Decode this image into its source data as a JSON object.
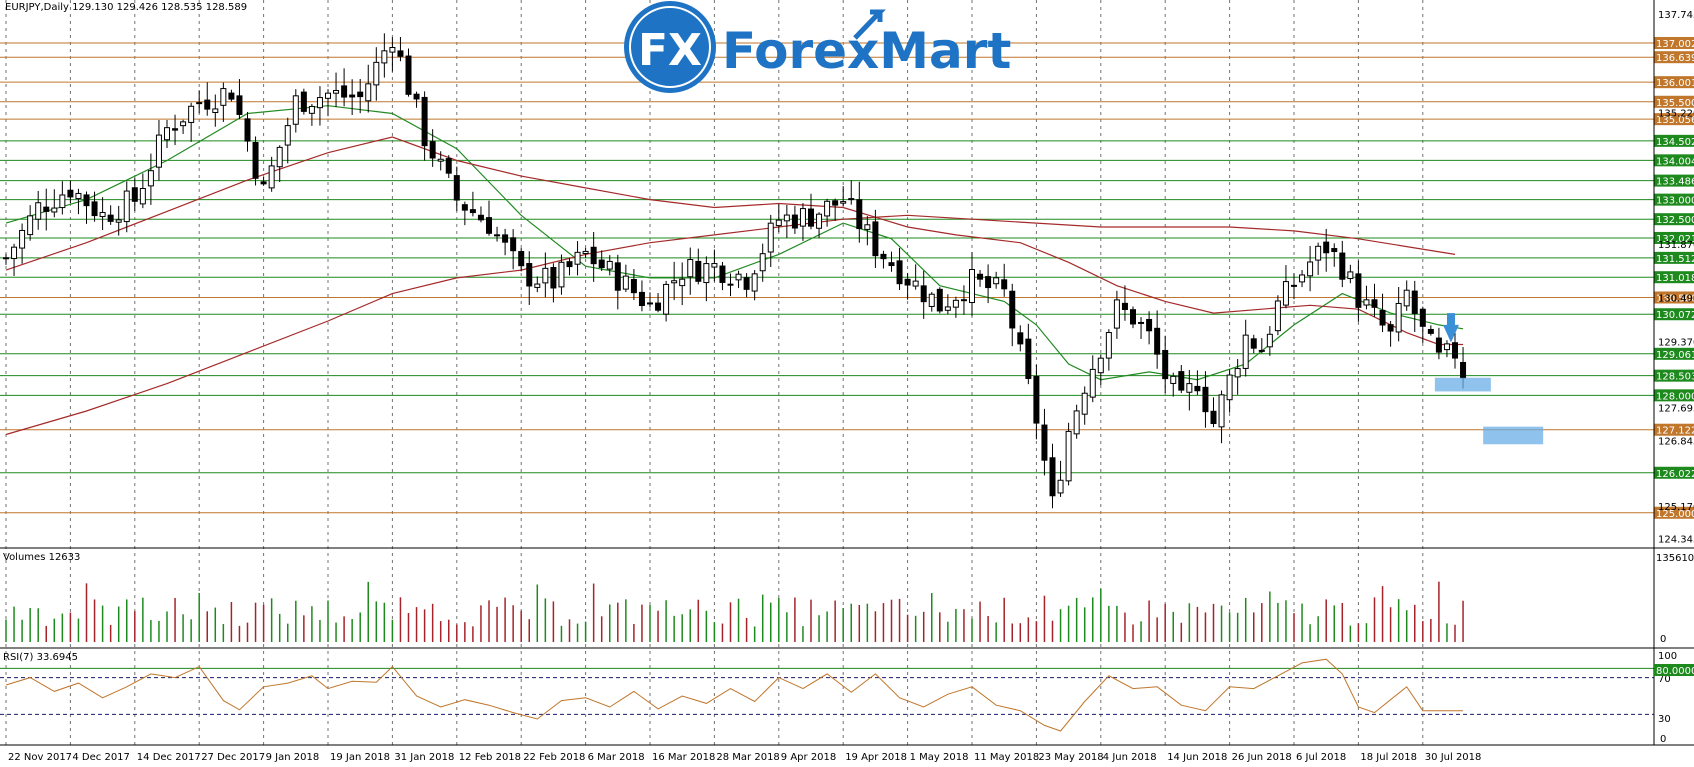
{
  "chart_data": {
    "type": "candlestick",
    "symbol_label": "EURJPY,Daily  129.130 129.426 128.535 128.589",
    "brand": {
      "name": "ForexMart",
      "mark": "FX",
      "color": "#1e73c4"
    },
    "price_axis": {
      "range": [
        124.1,
        138.1
      ],
      "ticks": [
        "137.745",
        "135.220",
        "131.870",
        "130.495",
        "129.370",
        "127.695",
        "126.845",
        "125.170",
        "124.345"
      ]
    },
    "x_axis": {
      "labels": [
        "22 Nov 2017",
        "4 Dec 2017",
        "14 Dec 2017",
        "27 Dec 2017",
        "9 Jan 2018",
        "19 Jan 2018",
        "31 Jan 2018",
        "12 Feb 2018",
        "22 Feb 2018",
        "6 Mar 2018",
        "16 Mar 2018",
        "28 Mar 2018",
        "9 Apr 2018",
        "19 Apr 2018",
        "1 May 2018",
        "11 May 2018",
        "23 May 2018",
        "4 Jun 2018",
        "14 Jun 2018",
        "26 Jun 2018",
        "6 Jul 2018",
        "18 Jul 2018",
        "30 Jul 2018"
      ],
      "label_bar_index": [
        0,
        8,
        16,
        24,
        32,
        40,
        48,
        56,
        64,
        72,
        80,
        88,
        96,
        104,
        112,
        120,
        128,
        136,
        144,
        152,
        160,
        168,
        176
      ]
    },
    "levels": [
      {
        "value": 137.002,
        "label": "137.002",
        "color": "#c0762b"
      },
      {
        "value": 136.639,
        "label": "136.639",
        "color": "#c0762b"
      },
      {
        "value": 136.001,
        "label": "136.001",
        "color": "#c0762b"
      },
      {
        "value": 135.5,
        "label": "135.500",
        "color": "#c0762b"
      },
      {
        "value": 135.056,
        "label": "135.056",
        "color": "#c0762b"
      },
      {
        "value": 134.502,
        "label": "134.502",
        "color": "#1e8a1e"
      },
      {
        "value": 134.004,
        "label": "134.004",
        "color": "#1e8a1e"
      },
      {
        "value": 133.486,
        "label": "133.486",
        "color": "#1e8a1e"
      },
      {
        "value": 133.0,
        "label": "133.000",
        "color": "#1e8a1e"
      },
      {
        "value": 132.5,
        "label": "132.500",
        "color": "#1e8a1e"
      },
      {
        "value": 132.021,
        "label": "132.021",
        "color": "#1e8a1e"
      },
      {
        "value": 131.512,
        "label": "131.512",
        "color": "#1e8a1e"
      },
      {
        "value": 131.018,
        "label": "131.018",
        "color": "#1e8a1e"
      },
      {
        "value": 130.5,
        "label": "130.500",
        "color": "#c0762b"
      },
      {
        "value": 130.072,
        "label": "130.072",
        "color": "#1e8a1e"
      },
      {
        "value": 129.061,
        "label": "129.061",
        "color": "#1e8a1e"
      },
      {
        "value": 128.503,
        "label": "128.503",
        "color": "#1e8a1e"
      },
      {
        "value": 128.0,
        "label": "128.000",
        "color": "#1e8a1e"
      },
      {
        "value": 127.122,
        "label": "127.122",
        "color": "#c0762b"
      },
      {
        "value": 126.022,
        "label": "126.022",
        "color": "#1e8a1e"
      },
      {
        "value": 125.0,
        "label": "125.000",
        "color": "#c0762b"
      }
    ],
    "candles": {
      "close_path": [
        [
          0,
          131.5
        ],
        [
          4,
          132.8
        ],
        [
          8,
          133.3
        ],
        [
          12,
          132.6
        ],
        [
          16,
          133.0
        ],
        [
          20,
          134.8
        ],
        [
          24,
          135.5
        ],
        [
          28,
          135.8
        ],
        [
          32,
          133.2
        ],
        [
          36,
          135.5
        ],
        [
          40,
          135.7
        ],
        [
          44,
          135.6
        ],
        [
          48,
          137.2
        ],
        [
          52,
          134.6
        ],
        [
          56,
          133.0
        ],
        [
          60,
          132.4
        ],
        [
          64,
          131.1
        ],
        [
          68,
          130.9
        ],
        [
          72,
          131.6
        ],
        [
          76,
          131.0
        ],
        [
          80,
          130.3
        ],
        [
          84,
          131.2
        ],
        [
          88,
          131.3
        ],
        [
          92,
          131.0
        ],
        [
          96,
          132.5
        ],
        [
          100,
          132.6
        ],
        [
          104,
          133.0
        ],
        [
          108,
          131.8
        ],
        [
          112,
          131.0
        ],
        [
          116,
          130.3
        ],
        [
          120,
          130.9
        ],
        [
          124,
          130.6
        ],
        [
          126,
          129.0
        ],
        [
          128,
          127.4
        ],
        [
          130,
          125.2
        ],
        [
          132,
          127.1
        ],
        [
          134,
          128.3
        ],
        [
          138,
          130.2
        ],
        [
          140,
          130.0
        ],
        [
          142,
          129.5
        ],
        [
          144,
          128.5
        ],
        [
          146,
          127.8
        ],
        [
          148,
          128.4
        ],
        [
          150,
          127.3
        ],
        [
          152,
          128.4
        ],
        [
          154,
          129.5
        ],
        [
          156,
          129.2
        ],
        [
          158,
          130.3
        ],
        [
          162,
          131.4
        ],
        [
          164,
          131.8
        ],
        [
          166,
          131.3
        ],
        [
          168,
          130.5
        ],
        [
          170,
          130.0
        ],
        [
          172,
          129.5
        ],
        [
          174,
          130.6
        ],
        [
          176,
          129.6
        ],
        [
          178,
          128.9
        ],
        [
          180,
          129.1
        ],
        [
          181,
          128.6
        ]
      ],
      "count": 182
    },
    "moving_averages": [
      {
        "color": "#228b22",
        "points": [
          [
            0,
            132.4
          ],
          [
            10,
            133.0
          ],
          [
            20,
            134.0
          ],
          [
            30,
            135.2
          ],
          [
            40,
            135.4
          ],
          [
            48,
            135.2
          ],
          [
            56,
            134.3
          ],
          [
            64,
            132.6
          ],
          [
            72,
            131.3
          ],
          [
            80,
            131.0
          ],
          [
            88,
            131.0
          ],
          [
            96,
            131.6
          ],
          [
            104,
            132.4
          ],
          [
            110,
            132.0
          ],
          [
            116,
            130.8
          ],
          [
            124,
            130.4
          ],
          [
            128,
            129.8
          ],
          [
            132,
            128.8
          ],
          [
            136,
            128.4
          ],
          [
            142,
            128.6
          ],
          [
            148,
            128.4
          ],
          [
            154,
            128.8
          ],
          [
            160,
            129.8
          ],
          [
            166,
            130.6
          ],
          [
            172,
            130.1
          ],
          [
            178,
            129.8
          ],
          [
            181,
            129.7
          ]
        ]
      },
      {
        "color": "#a52a2a",
        "points": [
          [
            0,
            131.2
          ],
          [
            10,
            131.9
          ],
          [
            20,
            132.7
          ],
          [
            30,
            133.5
          ],
          [
            40,
            134.2
          ],
          [
            48,
            134.6
          ],
          [
            56,
            134.0
          ],
          [
            64,
            133.6
          ],
          [
            72,
            133.3
          ],
          [
            80,
            133.0
          ],
          [
            88,
            132.8
          ],
          [
            96,
            132.9
          ],
          [
            104,
            132.8
          ],
          [
            112,
            132.3
          ],
          [
            118,
            132.1
          ],
          [
            126,
            131.9
          ],
          [
            132,
            131.4
          ],
          [
            138,
            130.8
          ],
          [
            144,
            130.4
          ],
          [
            150,
            130.1
          ],
          [
            156,
            130.2
          ],
          [
            162,
            130.3
          ],
          [
            168,
            130.2
          ],
          [
            174,
            129.6
          ],
          [
            178,
            129.3
          ],
          [
            181,
            129.3
          ]
        ]
      },
      {
        "color": "#a52a2a",
        "points": [
          [
            0,
            127.0
          ],
          [
            10,
            127.6
          ],
          [
            20,
            128.3
          ],
          [
            30,
            129.1
          ],
          [
            40,
            129.9
          ],
          [
            48,
            130.6
          ],
          [
            56,
            131.0
          ],
          [
            64,
            131.2
          ],
          [
            72,
            131.6
          ],
          [
            80,
            131.9
          ],
          [
            88,
            132.1
          ],
          [
            96,
            132.3
          ],
          [
            104,
            132.5
          ],
          [
            112,
            132.6
          ],
          [
            120,
            132.5
          ],
          [
            128,
            132.4
          ],
          [
            136,
            132.3
          ],
          [
            144,
            132.3
          ],
          [
            152,
            132.3
          ],
          [
            160,
            132.2
          ],
          [
            168,
            132.0
          ],
          [
            174,
            131.8
          ],
          [
            180,
            131.6
          ]
        ]
      }
    ],
    "volumes": {
      "label": "Volumes 12633",
      "max_label": "135610",
      "zero_label": "0",
      "max": 135610
    },
    "rsi": {
      "label": "RSI(7) 33.6945",
      "level_label": "80.0000",
      "ticks": [
        "100",
        "70",
        "30",
        "0"
      ],
      "points": [
        [
          0,
          62
        ],
        [
          3,
          70
        ],
        [
          6,
          55
        ],
        [
          9,
          64
        ],
        [
          12,
          48
        ],
        [
          15,
          60
        ],
        [
          18,
          74
        ],
        [
          21,
          70
        ],
        [
          24,
          82
        ],
        [
          27,
          45
        ],
        [
          29,
          35
        ],
        [
          32,
          60
        ],
        [
          35,
          64
        ],
        [
          38,
          72
        ],
        [
          40,
          58
        ],
        [
          43,
          66
        ],
        [
          46,
          65
        ],
        [
          48,
          82
        ],
        [
          51,
          50
        ],
        [
          54,
          38
        ],
        [
          57,
          46
        ],
        [
          60,
          40
        ],
        [
          63,
          32
        ],
        [
          66,
          25
        ],
        [
          69,
          45
        ],
        [
          72,
          48
        ],
        [
          75,
          38
        ],
        [
          78,
          55
        ],
        [
          81,
          36
        ],
        [
          84,
          50
        ],
        [
          87,
          42
        ],
        [
          90,
          58
        ],
        [
          93,
          44
        ],
        [
          96,
          70
        ],
        [
          99,
          58
        ],
        [
          102,
          74
        ],
        [
          105,
          54
        ],
        [
          108,
          74
        ],
        [
          111,
          48
        ],
        [
          114,
          38
        ],
        [
          117,
          52
        ],
        [
          120,
          60
        ],
        [
          123,
          40
        ],
        [
          126,
          34
        ],
        [
          129,
          18
        ],
        [
          131,
          12
        ],
        [
          134,
          44
        ],
        [
          137,
          72
        ],
        [
          140,
          58
        ],
        [
          143,
          60
        ],
        [
          146,
          40
        ],
        [
          149,
          34
        ],
        [
          152,
          60
        ],
        [
          155,
          58
        ],
        [
          158,
          72
        ],
        [
          161,
          86
        ],
        [
          164,
          90
        ],
        [
          166,
          74
        ],
        [
          168,
          38
        ],
        [
          170,
          32
        ],
        [
          172,
          46
        ],
        [
          174,
          60
        ],
        [
          176,
          34
        ],
        [
          178,
          34
        ],
        [
          181,
          34
        ]
      ]
    },
    "annotations": [
      "sell arrow",
      "target zone 1",
      "target zone 2"
    ]
  }
}
